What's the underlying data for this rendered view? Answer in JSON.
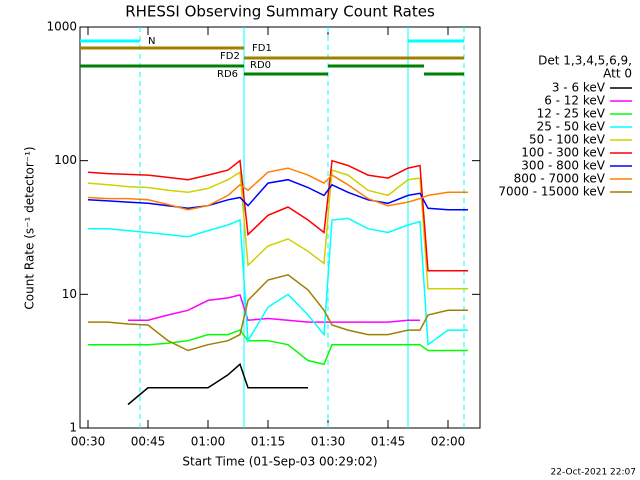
{
  "chart_data": {
    "type": "line",
    "title": "RHESSI Observing Summary Count Rates",
    "x_label": "Start Time (01-Sep-03 00:29:02)",
    "y_label": "Count Rate (s⁻¹ detector⁻¹)",
    "footer": "22-Oct-2021 22:07",
    "legend_header": [
      "Det 1,3,4,5,6,9,",
      "Att 0"
    ],
    "log_y": true,
    "xlim": [
      "00:28",
      "02:08"
    ],
    "xticks": [
      "00:30",
      "00:45",
      "01:00",
      "01:15",
      "01:30",
      "01:45",
      "02:00"
    ],
    "ylim": [
      1,
      1000
    ],
    "yticks": [
      1,
      10,
      100,
      1000
    ],
    "x": [
      "00:30",
      "00:35",
      "00:40",
      "00:45",
      "00:50",
      "00:55",
      "01:00",
      "01:05",
      "01:08",
      "01:10",
      "01:15",
      "01:20",
      "01:25",
      "01:29",
      "01:31",
      "01:35",
      "01:40",
      "01:45",
      "01:50",
      "01:53",
      "01:55",
      "02:00",
      "02:05"
    ],
    "series": [
      {
        "name": "3 - 6 keV",
        "color": "#000000",
        "values": [
          null,
          null,
          1.5,
          2,
          2,
          2,
          2,
          2.5,
          3,
          2,
          2,
          2,
          2,
          null,
          null,
          null,
          null,
          null,
          null,
          null,
          null,
          null,
          null
        ]
      },
      {
        "name": "6 - 12 keV",
        "color": "#ff00ff",
        "values": [
          null,
          null,
          6.4,
          6.4,
          7,
          7.6,
          9,
          9.4,
          9.9,
          6.4,
          6.6,
          6.4,
          6.2,
          6.2,
          6.2,
          6.2,
          6.2,
          6.2,
          6.4,
          6.4,
          null,
          null,
          null
        ]
      },
      {
        "name": "12 - 25 keV",
        "color": "#00ff00",
        "values": [
          4.2,
          4.2,
          4.2,
          4.2,
          4.3,
          4.5,
          5,
          5,
          5.4,
          4.5,
          4.5,
          4.2,
          3.2,
          3,
          4.2,
          4.2,
          4.2,
          4.2,
          4.2,
          4.2,
          3.8,
          3.8,
          3.8
        ]
      },
      {
        "name": "25 - 50 keV",
        "color": "#00ffff",
        "values": [
          31,
          31,
          30,
          29,
          28,
          27,
          30,
          33,
          36,
          4.5,
          8,
          10,
          7,
          5,
          36,
          37,
          31,
          29,
          33,
          35,
          4.2,
          5.4,
          5.4
        ]
      },
      {
        "name": "50 - 100 keV",
        "color": "#d0d000",
        "values": [
          68,
          66,
          64,
          63,
          60,
          58,
          62,
          72,
          82,
          16.5,
          23,
          26,
          21,
          17,
          85,
          78,
          60,
          55,
          72,
          74,
          11,
          11,
          11
        ]
      },
      {
        "name": "100 - 300 keV",
        "color": "#ff0000",
        "values": [
          82,
          80,
          79,
          78,
          75,
          72,
          78,
          85,
          100,
          28,
          39,
          45,
          36,
          29,
          100,
          92,
          78,
          74,
          88,
          92,
          15,
          15,
          15
        ]
      },
      {
        "name": "300 - 800 keV",
        "color": "#0000ff",
        "values": [
          51,
          50,
          49,
          48,
          46,
          44,
          46,
          51,
          53,
          46,
          68,
          72,
          63,
          55,
          66,
          58,
          51,
          48,
          55,
          57,
          44,
          43,
          43
        ]
      },
      {
        "name": "800 - 7000 keV",
        "color": "#ff8000",
        "values": [
          53,
          52,
          52,
          51,
          47,
          43,
          46,
          55,
          66,
          60,
          82,
          88,
          78,
          68,
          78,
          66,
          52,
          46,
          49,
          52,
          55,
          58,
          58
        ]
      },
      {
        "name": "7000 - 15000 keV",
        "color": "#a08000",
        "values": [
          6.2,
          6.2,
          6,
          5.9,
          4.5,
          3.8,
          4.2,
          4.5,
          5,
          9,
          12.8,
          14,
          10.8,
          7.6,
          5.9,
          5.4,
          5,
          5,
          5.4,
          5.4,
          7,
          7.6,
          7.6
        ]
      }
    ],
    "markers": [
      {
        "x": "00:43",
        "style": "dashed",
        "color": "#00ffff"
      },
      {
        "x": "01:09",
        "style": "solid",
        "color": "#00ffff"
      },
      {
        "x": "01:30",
        "style": "dashed",
        "color": "#00ffff"
      },
      {
        "x": "01:50",
        "style": "solid",
        "color": "#00ffff"
      },
      {
        "x": "02:04",
        "style": "dashed",
        "color": "#00ffff"
      }
    ],
    "flags": [
      {
        "name": "N",
        "color": "#00ffff",
        "intervals": [
          [
            "00:28",
            "00:43"
          ],
          [
            "01:50",
            "02:04"
          ]
        ]
      },
      {
        "name": "FD1",
        "color": "#a08000",
        "intervals": [
          [
            "00:28",
            "01:09"
          ]
        ]
      },
      {
        "name": "FD2",
        "color": "#a08000",
        "intervals": [
          [
            "01:09",
            "02:04"
          ]
        ]
      },
      {
        "name": "RD0",
        "color": "#008000",
        "intervals": [
          [
            "00:28",
            "01:09"
          ],
          [
            "01:30",
            "01:54"
          ]
        ]
      },
      {
        "name": "RD6",
        "color": "#008000",
        "intervals": [
          [
            "01:09",
            "01:30"
          ],
          [
            "01:54",
            "02:04"
          ]
        ]
      }
    ]
  }
}
